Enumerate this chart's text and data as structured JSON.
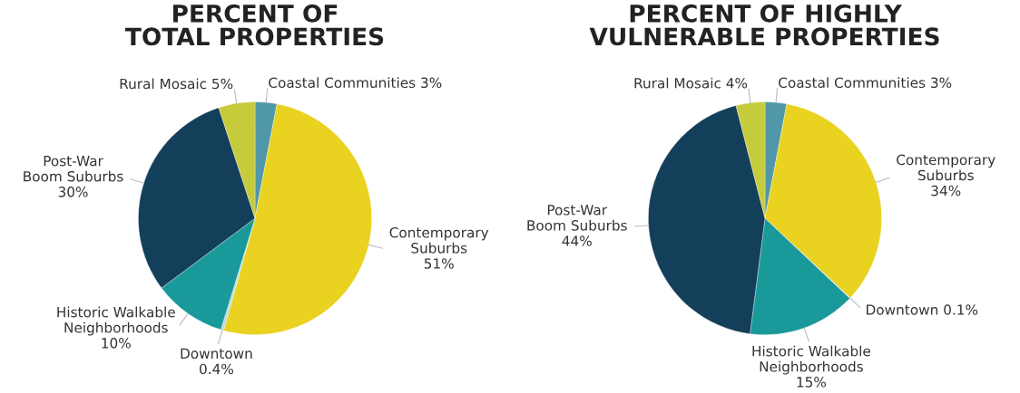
{
  "chart_data": [
    {
      "type": "pie",
      "title": "PERCENT OF\nTOTAL PROPERTIES",
      "categories": [
        "Coastal Communities",
        "Contemporary\nSuburbs",
        "Downtown",
        "Historic Walkable\nNeighborhoods",
        "Post-War\nBoom Suburbs",
        "Rural Mosaic"
      ],
      "values": [
        3,
        51,
        0.4,
        10,
        30,
        5
      ],
      "value_labels": [
        "3%",
        "51%",
        "0.4%",
        "10%",
        "30%",
        "5%"
      ],
      "colors": [
        "#4f97a9",
        "#e9d220",
        "#b9dbe0",
        "#1a999b",
        "#143f5a",
        "#c5cb3b"
      ]
    },
    {
      "type": "pie",
      "title": "PERCENT OF HIGHLY\nVULNERABLE PROPERTIES",
      "categories": [
        "Coastal Communities",
        "Contemporary\nSuburbs",
        "Downtown",
        "Historic Walkable\nNeighborhoods",
        "Post-War\nBoom Suburbs",
        "Rural Mosaic"
      ],
      "values": [
        3,
        34,
        0.1,
        15,
        44,
        4
      ],
      "value_labels": [
        "3%",
        "34%",
        "0.1%",
        "15%",
        "44%",
        "4%"
      ],
      "colors": [
        "#4f97a9",
        "#e9d220",
        "#b9dbe0",
        "#1a999b",
        "#143f5a",
        "#c5cb3b"
      ]
    }
  ]
}
